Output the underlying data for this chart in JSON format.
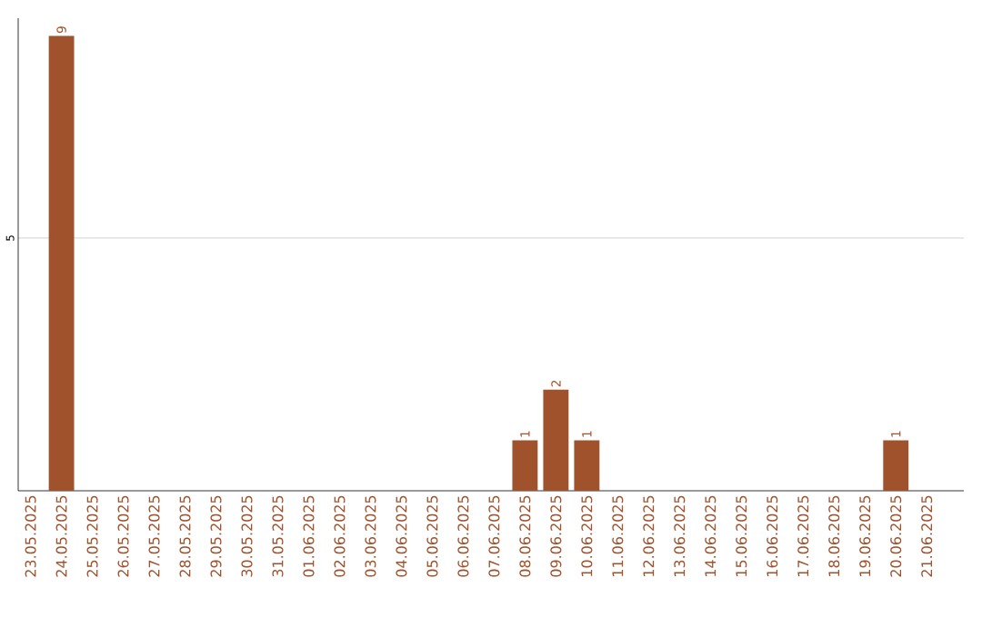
{
  "chart_data": {
    "type": "bar",
    "categories": [
      "23.05.2025",
      "24.05.2025",
      "25.05.2025",
      "26.05.2025",
      "27.05.2025",
      "28.05.2025",
      "29.05.2025",
      "30.05.2025",
      "31.05.2025",
      "01.06.2025",
      "02.06.2025",
      "03.06.2025",
      "04.06.2025",
      "05.06.2025",
      "06.06.2025",
      "07.06.2025",
      "08.06.2025",
      "09.06.2025",
      "10.06.2025",
      "11.06.2025",
      "12.06.2025",
      "13.06.2025",
      "14.06.2025",
      "15.06.2025",
      "16.06.2025",
      "17.06.2025",
      "18.06.2025",
      "19.06.2025",
      "20.06.2025",
      "21.06.2025"
    ],
    "values": [
      0,
      9,
      0,
      0,
      0,
      0,
      0,
      0,
      0,
      0,
      0,
      0,
      0,
      0,
      0,
      0,
      1,
      2,
      1,
      0,
      0,
      0,
      0,
      0,
      0,
      0,
      0,
      0,
      1,
      0
    ],
    "value_labels": [
      null,
      "9",
      null,
      null,
      null,
      null,
      null,
      null,
      null,
      null,
      null,
      null,
      null,
      null,
      null,
      null,
      "1",
      "2",
      "1",
      null,
      null,
      null,
      null,
      null,
      null,
      null,
      null,
      null,
      "1",
      null
    ],
    "color": "#a0522d",
    "ylim": [
      0,
      9.35
    ],
    "yticks": [
      5
    ],
    "grid": "y"
  }
}
